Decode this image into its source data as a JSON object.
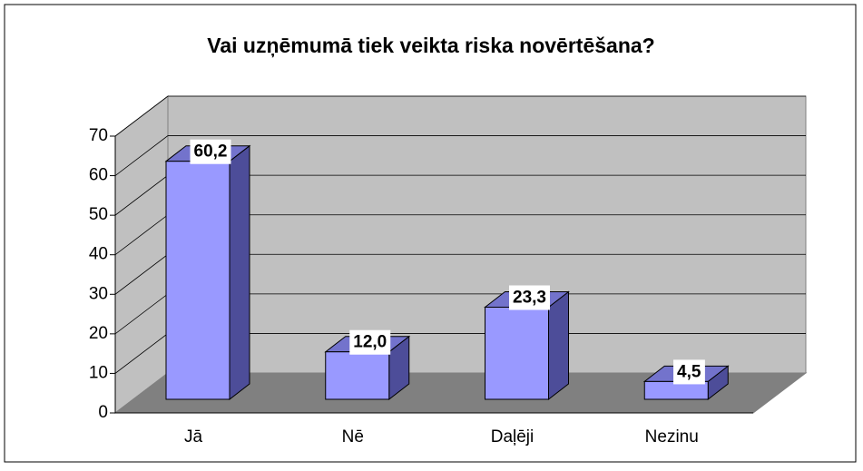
{
  "chart_data": {
    "type": "bar3d",
    "title": "Vai uzņēmumā tiek veikta riska novērtēšana?",
    "categories": [
      "Jā",
      "Nē",
      "Daļēji",
      "Nezinu"
    ],
    "values": [
      60.2,
      12,
      23.3,
      4.5
    ],
    "value_labels": [
      "60,2",
      "12,0",
      "23,3",
      "4,5"
    ],
    "color": "#9999ff",
    "ylim": [
      0,
      70
    ],
    "yticks": [
      0,
      10,
      20,
      30,
      40,
      50,
      60,
      70
    ],
    "grid": true
  }
}
